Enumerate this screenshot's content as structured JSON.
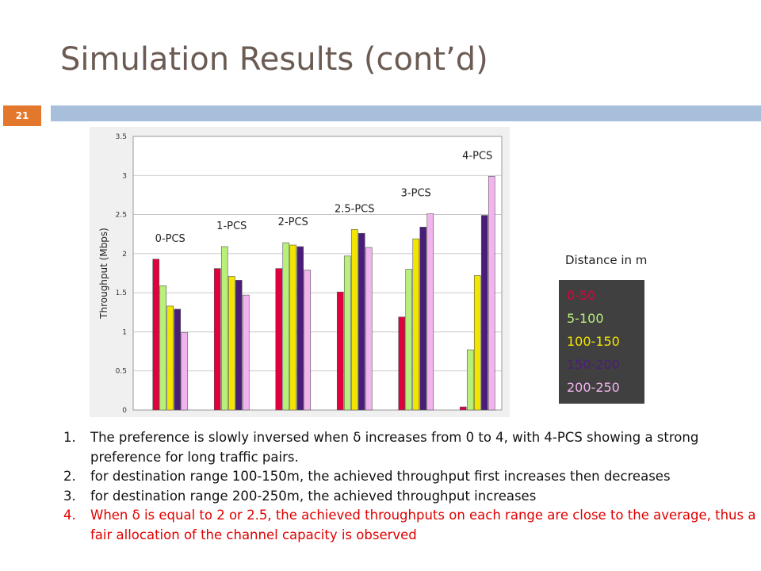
{
  "slide": {
    "title": "Simulation Results (cont’d)",
    "page_number": "21",
    "accent_color": "#e3772b",
    "band_color": "#a8bfdc"
  },
  "legend": {
    "title": "Distance in m",
    "items": [
      {
        "label": "0-50",
        "color": "#e0003c"
      },
      {
        "label": "5-100",
        "color": "#b8f07a"
      },
      {
        "label": "100-150",
        "color": "#f2e600"
      },
      {
        "label": "150-200",
        "color": "#4a1e78"
      },
      {
        "label": "200-250",
        "color": "#f2b4ef"
      }
    ]
  },
  "chart_data": {
    "type": "bar",
    "categories": [
      "0-PCS",
      "1-PCS",
      "2-PCS",
      "2.5-PCS",
      "3-PCS",
      "4-PCS"
    ],
    "ylabel": "Throughput (Mbps)",
    "ylim": [
      0,
      3.5
    ],
    "yticks": [
      "0",
      "0.5",
      "1",
      "1.5",
      "2",
      "2.5",
      "3",
      "3.5"
    ],
    "grid": true,
    "series": [
      {
        "name": "0-50",
        "color": "#e0003c",
        "values": [
          1.93,
          1.81,
          1.81,
          1.51,
          1.19,
          0.04
        ]
      },
      {
        "name": "5-100",
        "color": "#b8f07a",
        "values": [
          1.59,
          2.09,
          2.14,
          1.97,
          1.8,
          0.77
        ]
      },
      {
        "name": "100-150",
        "color": "#f2e600",
        "values": [
          1.33,
          1.71,
          2.11,
          2.31,
          2.19,
          1.72
        ]
      },
      {
        "name": "150-200",
        "color": "#4a1e78",
        "values": [
          1.29,
          1.66,
          2.09,
          2.26,
          2.34,
          2.49
        ]
      },
      {
        "name": "200-250",
        "color": "#f2b4ef",
        "values": [
          0.99,
          1.47,
          1.79,
          2.08,
          2.51,
          2.99
        ]
      }
    ]
  },
  "notes": [
    {
      "num": "1.",
      "text": "The preference is slowly inversed when δ increases from 0 to 4, with 4-PCS showing a strong preference for long traffic pairs."
    },
    {
      "num": "2.",
      "text": "for destination range 100-150m, the achieved throughput first increases then decreases"
    },
    {
      "num": "3.",
      "text": "for destination range 200-250m, the achieved throughput increases"
    },
    {
      "num": "4.",
      "text": "When δ is equal to 2 or 2.5, the achieved throughputs on each range are close to the average, thus a fair allocation of the channel capacity is observed"
    }
  ]
}
